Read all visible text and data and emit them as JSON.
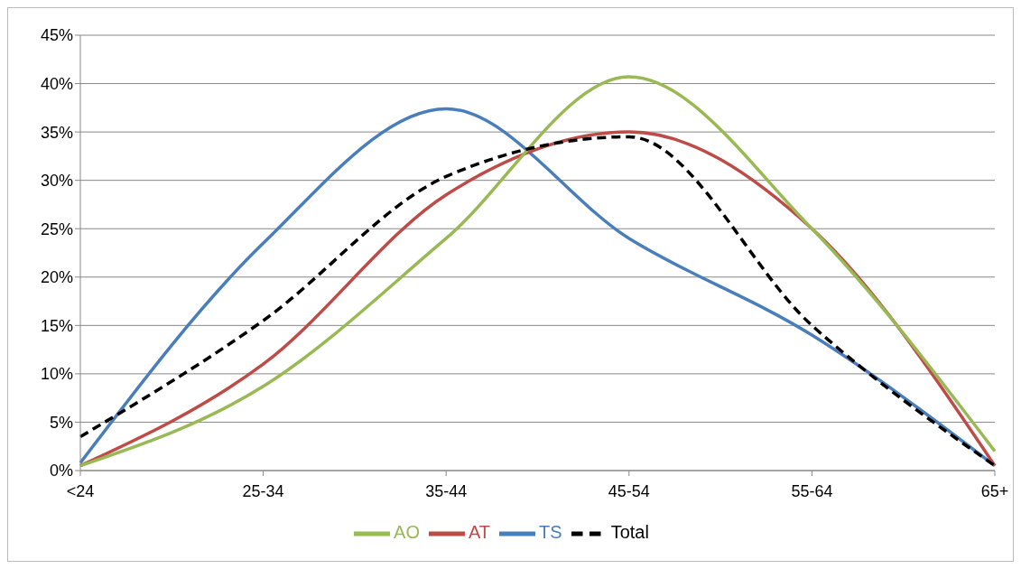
{
  "chart_data": {
    "type": "line",
    "categories": [
      "<24",
      "25-34",
      "35-44",
      "45-54",
      "55-64",
      "65+"
    ],
    "series": [
      {
        "name": "TS",
        "color": "#4a7ebb",
        "values": [
          0.8,
          23.5,
          37.4,
          24,
          14,
          0.5
        ]
      },
      {
        "name": "AT",
        "color": "#be4b48",
        "values": [
          0.5,
          11,
          28.5,
          35,
          25,
          0.5
        ]
      },
      {
        "name": "AO",
        "color": "#98b954",
        "values": [
          0.5,
          8.7,
          24,
          40.7,
          25,
          2
        ]
      },
      {
        "name": "Total",
        "color": "#000000",
        "line_style": "dashed",
        "values": [
          3.5,
          15.5,
          30.4,
          34.5,
          15,
          0.5
        ]
      }
    ],
    "ylim": [
      0,
      45
    ],
    "yticks": [
      {
        "value": 0,
        "label": "0%"
      },
      {
        "value": 5,
        "label": "5%"
      },
      {
        "value": 10,
        "label": "10%"
      },
      {
        "value": 15,
        "label": "15%"
      },
      {
        "value": 20,
        "label": "20%"
      },
      {
        "value": 25,
        "label": "25%"
      },
      {
        "value": 30,
        "label": "30%"
      },
      {
        "value": 35,
        "label": "35%"
      },
      {
        "value": 40,
        "label": "40%"
      },
      {
        "value": 45,
        "label": "45%"
      }
    ],
    "grid": "y",
    "legend": "bottom",
    "marker": "none",
    "line_style": "solid"
  }
}
